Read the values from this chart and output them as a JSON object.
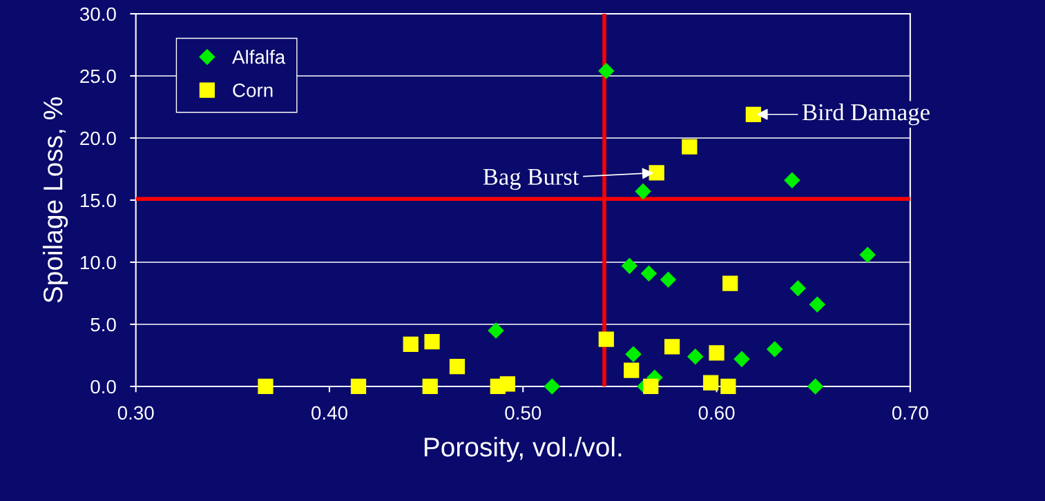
{
  "chart_data": {
    "type": "scatter",
    "xlabel": "Porosity, vol./vol.",
    "ylabel": "Spoilage Loss, %",
    "xlim": [
      0.3,
      0.7
    ],
    "xticks": [
      {
        "value": 0.3,
        "label": "0.30"
      },
      {
        "value": 0.4,
        "label": "0.40"
      },
      {
        "value": 0.5,
        "label": "0.50"
      },
      {
        "value": 0.6,
        "label": "0.60"
      },
      {
        "value": 0.7,
        "label": "0.70"
      }
    ],
    "ylim": [
      0,
      30
    ],
    "yticks": [
      {
        "value": 0,
        "label": "0.0"
      },
      {
        "value": 5,
        "label": "5.0"
      },
      {
        "value": 10,
        "label": "10.0"
      },
      {
        "value": 15,
        "label": "15.0"
      },
      {
        "value": 20,
        "label": "20.0"
      },
      {
        "value": 25,
        "label": "25.0"
      },
      {
        "value": 30,
        "label": "30.0"
      }
    ],
    "grid": "y",
    "legend": "top left",
    "series": [
      {
        "name": "Alfalfa",
        "color": "#00ee00",
        "marker": "diamond",
        "x": [
          0.543,
          0.639,
          0.562,
          0.678,
          0.555,
          0.565,
          0.575,
          0.642,
          0.652,
          0.486,
          0.557,
          0.589,
          0.613,
          0.63,
          0.568,
          0.563,
          0.515,
          0.651
        ],
        "values": [
          25.4,
          16.6,
          15.7,
          10.6,
          9.7,
          9.1,
          8.6,
          7.9,
          6.6,
          4.5,
          2.6,
          2.4,
          2.2,
          3.0,
          0.7,
          0.0,
          0.0,
          0.0
        ]
      },
      {
        "name": "Corn",
        "color": "#ffff00",
        "marker": "square",
        "x": [
          0.619,
          0.586,
          0.569,
          0.607,
          0.543,
          0.442,
          0.453,
          0.466,
          0.577,
          0.6,
          0.556,
          0.597,
          0.367,
          0.415,
          0.452,
          0.487,
          0.492,
          0.566,
          0.606
        ],
        "values": [
          21.9,
          19.3,
          17.2,
          8.3,
          3.8,
          3.4,
          3.6,
          1.6,
          3.2,
          2.7,
          1.3,
          0.3,
          0.0,
          0.0,
          0.0,
          0.0,
          0.2,
          0.0,
          0.0
        ]
      }
    ],
    "ref_lines": [
      {
        "axis": "y",
        "value": 15.1,
        "color": "#ff0000"
      },
      {
        "axis": "x",
        "value": 0.542,
        "color": "#ff0000"
      }
    ],
    "annotations": [
      {
        "text": "Bird Damage",
        "x": 0.619,
        "y": 21.9
      },
      {
        "text": "Bag Burst",
        "x": 0.569,
        "y": 17.2
      }
    ]
  }
}
